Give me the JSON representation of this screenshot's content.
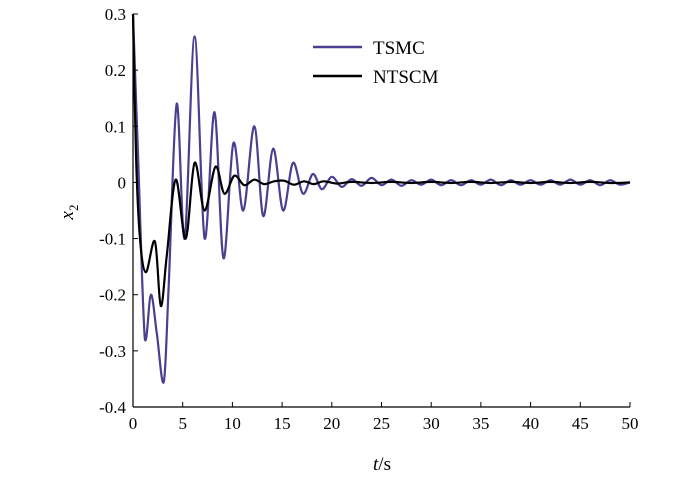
{
  "chart_data": {
    "type": "line",
    "title": "",
    "xlabel": "t/s",
    "xlabel_parts": {
      "var": "t",
      "unit": "/s"
    },
    "ylabel": "x2",
    "ylabel_parts": {
      "var": "x",
      "sub": "2"
    },
    "xlim": [
      0,
      50
    ],
    "ylim": [
      -0.4,
      0.3
    ],
    "xticks": [
      0,
      5,
      10,
      15,
      20,
      25,
      30,
      35,
      40,
      45,
      50
    ],
    "xtick_labels": [
      "0",
      "5",
      "10",
      "15",
      "20",
      "25",
      "30",
      "35",
      "40",
      "45",
      "50"
    ],
    "yticks": [
      0.3,
      0.2,
      0.1,
      0,
      -0.1,
      -0.2,
      -0.3,
      -0.4
    ],
    "ytick_labels": [
      "0.3",
      "0.2",
      "0.1",
      "0",
      "-0.1",
      "-0.2",
      "-0.3",
      "-0.4"
    ],
    "grid": false,
    "legend_position": "top-right",
    "series": [
      {
        "name": "TSMC",
        "color": "#4b3f8f",
        "x": [
          0,
          0.5,
          1.2,
          1.8,
          2.4,
          3.1,
          3.6,
          4.4,
          5.2,
          6.2,
          7.2,
          8.2,
          9.1,
          10.1,
          11.1,
          12.2,
          13.1,
          14.1,
          15.1,
          16.1,
          17.1,
          18.1,
          19.0,
          20.0,
          21.0,
          22.0,
          23.0,
          24.0,
          25.0,
          26.0,
          27.0,
          28.0,
          29.0,
          30.0,
          31.0,
          32.0,
          33.0,
          34.0,
          35.0,
          36.0,
          37.0,
          38.0,
          39.0,
          40.0,
          41.0,
          42.0,
          43.0,
          44.0,
          45.0,
          46.0,
          47.0,
          48.0,
          49.0,
          50.0
        ],
        "y": [
          0.3,
          0.05,
          -0.28,
          -0.2,
          -0.27,
          -0.355,
          -0.18,
          0.14,
          -0.1,
          0.26,
          -0.1,
          0.125,
          -0.135,
          0.07,
          -0.05,
          0.1,
          -0.06,
          0.06,
          -0.05,
          0.035,
          -0.02,
          0.015,
          -0.012,
          0.01,
          -0.008,
          0.006,
          -0.006,
          0.008,
          -0.005,
          0.005,
          -0.006,
          0.004,
          -0.004,
          0.005,
          -0.005,
          0.004,
          -0.005,
          0.004,
          -0.004,
          0.005,
          -0.005,
          0.004,
          -0.004,
          0.004,
          -0.004,
          0.004,
          -0.004,
          0.005,
          -0.004,
          0.004,
          -0.005,
          0.004,
          -0.004,
          0.0
        ]
      },
      {
        "name": "NTSCM",
        "color": "#000000",
        "x": [
          0,
          0.3,
          0.7,
          1.3,
          2.2,
          2.8,
          3.4,
          4.3,
          5.3,
          6.2,
          7.2,
          8.3,
          9.2,
          10.2,
          11.2,
          12.2,
          13.2,
          14.2,
          15.2,
          16.2,
          17.2,
          18.2,
          19.2,
          20.5,
          22.0,
          24.0,
          26.0,
          28.0,
          30.0,
          32.0,
          34.0,
          36.0,
          38.0,
          40.0,
          42.0,
          44.0,
          46.0,
          48.0,
          50.0
        ],
        "y": [
          0.3,
          0.05,
          -0.1,
          -0.16,
          -0.105,
          -0.22,
          -0.13,
          0.005,
          -0.1,
          0.035,
          -0.05,
          0.028,
          -0.02,
          0.012,
          -0.005,
          0.005,
          -0.003,
          0.002,
          0.003,
          -0.004,
          0.002,
          -0.003,
          0.002,
          -0.002,
          0.001,
          -0.001,
          0.001,
          -0.001,
          0.001,
          -0.001,
          0.001,
          -0.001,
          0.001,
          -0.001,
          0.001,
          -0.001,
          0.001,
          -0.001,
          0.0
        ]
      }
    ]
  }
}
